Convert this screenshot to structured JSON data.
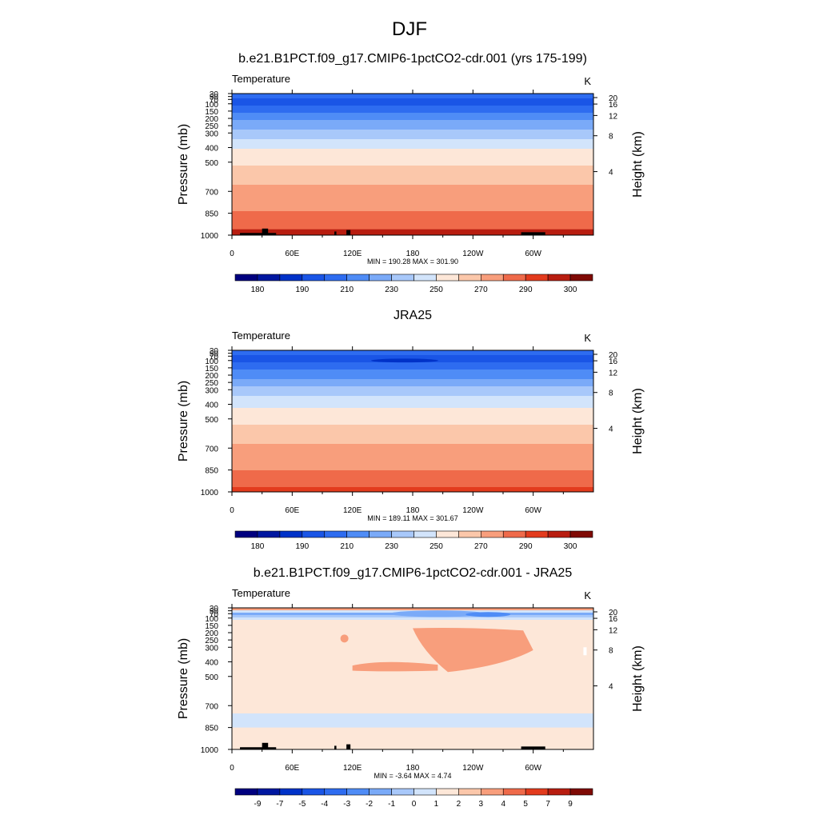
{
  "figure": {
    "title": "DJF"
  },
  "chart_data": [
    {
      "type": "heatmap",
      "title": "b.e21.B1PCT.f09_g17.CMIP6-1pctCO2-cdr.001 (yrs 175-199)",
      "left_label": "Temperature",
      "units": "K",
      "ylabel": "Pressure (mb)",
      "y2label": "Height (km)",
      "x_ticks": [
        "0",
        "60E",
        "120E",
        "180",
        "120W",
        "60W"
      ],
      "y_ticks": [
        "30",
        "50",
        "70",
        "100",
        "150",
        "200",
        "250",
        "300",
        "400",
        "500",
        "700",
        "850",
        "1000"
      ],
      "y2_ticks": [
        "4",
        "8",
        "12",
        "16",
        "20"
      ],
      "minmax": "MIN = 190.28  MAX = 301.90",
      "min": 190.28,
      "max": 301.9,
      "colorbar_labels": [
        "180",
        "190",
        "210",
        "230",
        "250",
        "270",
        "290",
        "300"
      ],
      "levels": [
        175,
        180,
        185,
        190,
        200,
        210,
        220,
        230,
        240,
        250,
        260,
        270,
        280,
        290,
        295,
        300
      ],
      "profile": [
        {
          "p": 30,
          "t": 212
        },
        {
          "p": 40,
          "t": 209
        },
        {
          "p": 50,
          "t": 205
        },
        {
          "p": 70,
          "t": 199
        },
        {
          "p": 100,
          "t": 198
        },
        {
          "p": 130,
          "t": 203
        },
        {
          "p": 150,
          "t": 208
        },
        {
          "p": 200,
          "t": 217
        },
        {
          "p": 250,
          "t": 227
        },
        {
          "p": 300,
          "t": 235
        },
        {
          "p": 400,
          "t": 249
        },
        {
          "p": 500,
          "t": 258
        },
        {
          "p": 600,
          "t": 266
        },
        {
          "p": 700,
          "t": 273
        },
        {
          "p": 850,
          "t": 281
        },
        {
          "p": 925,
          "t": 287
        },
        {
          "p": 1000,
          "t": 293
        }
      ],
      "topography": true
    },
    {
      "type": "heatmap",
      "title": "JRA25",
      "left_label": "Temperature",
      "units": "K",
      "ylabel": "Pressure (mb)",
      "y2label": "Height (km)",
      "x_ticks": [
        "0",
        "60E",
        "120E",
        "180",
        "120W",
        "60W"
      ],
      "y_ticks": [
        "30",
        "50",
        "70",
        "100",
        "150",
        "200",
        "250",
        "300",
        "400",
        "500",
        "700",
        "850",
        "1000"
      ],
      "y2_ticks": [
        "4",
        "8",
        "12",
        "16",
        "20"
      ],
      "minmax": "MIN = 189.11  MAX = 301.67",
      "min": 189.11,
      "max": 301.67,
      "colorbar_labels": [
        "180",
        "190",
        "210",
        "230",
        "250",
        "270",
        "290",
        "300"
      ],
      "levels": [
        175,
        180,
        185,
        190,
        200,
        210,
        220,
        230,
        240,
        250,
        260,
        270,
        280,
        290,
        295,
        300
      ],
      "profile": [
        {
          "p": 30,
          "t": 210
        },
        {
          "p": 40,
          "t": 207
        },
        {
          "p": 50,
          "t": 203
        },
        {
          "p": 70,
          "t": 198
        },
        {
          "p": 100,
          "t": 197
        },
        {
          "p": 130,
          "t": 202
        },
        {
          "p": 150,
          "t": 207
        },
        {
          "p": 200,
          "t": 216
        },
        {
          "p": 250,
          "t": 226
        },
        {
          "p": 300,
          "t": 234
        },
        {
          "p": 400,
          "t": 248
        },
        {
          "p": 500,
          "t": 257
        },
        {
          "p": 600,
          "t": 265
        },
        {
          "p": 700,
          "t": 272
        },
        {
          "p": 850,
          "t": 280
        },
        {
          "p": 925,
          "t": 286
        },
        {
          "p": 1000,
          "t": 292
        }
      ],
      "topography": false
    },
    {
      "type": "heatmap",
      "title": "b.e21.B1PCT.f09_g17.CMIP6-1pctCO2-cdr.001 - JRA25",
      "left_label": "Temperature",
      "units": "K",
      "ylabel": "Pressure (mb)",
      "y2label": "Height (km)",
      "x_ticks": [
        "0",
        "60E",
        "120E",
        "180",
        "120W",
        "60W"
      ],
      "y_ticks": [
        "30",
        "50",
        "70",
        "100",
        "150",
        "200",
        "250",
        "300",
        "400",
        "500",
        "700",
        "850",
        "1000"
      ],
      "y2_ticks": [
        "4",
        "8",
        "12",
        "16",
        "20"
      ],
      "minmax": "MIN =  -3.64  MAX =   4.74",
      "min": -3.64,
      "max": 4.74,
      "colorbar_labels": [
        "-9",
        "-7",
        "-5",
        "-4",
        "-3",
        "-2",
        "-1",
        "0",
        "1",
        "2",
        "3",
        "4",
        "5",
        "7",
        "9"
      ],
      "levels": [
        -11,
        -9,
        -7,
        -5,
        -4,
        -3,
        -2,
        -1,
        0,
        1,
        2,
        3,
        4,
        5,
        7,
        9
      ],
      "profile": [
        {
          "p": 30,
          "t": 4.2
        },
        {
          "p": 40,
          "t": 3.6
        },
        {
          "p": 50,
          "t": 1.5
        },
        {
          "p": 60,
          "t": -0.6
        },
        {
          "p": 70,
          "t": -1.6
        },
        {
          "p": 85,
          "t": -0.3
        },
        {
          "p": 100,
          "t": 0.4
        },
        {
          "p": 130,
          "t": 1.4
        },
        {
          "p": 150,
          "t": 1.5
        },
        {
          "p": 300,
          "t": 1.5
        },
        {
          "p": 500,
          "t": 1.6
        },
        {
          "p": 700,
          "t": 1.2
        },
        {
          "p": 850,
          "t": 0.6
        },
        {
          "p": 1000,
          "t": 1.5
        }
      ],
      "topography": true
    }
  ],
  "colors": {
    "temperature_fills": [
      "#00007f",
      "#0017a0",
      "#0032c8",
      "#1a55e6",
      "#2e6cf0",
      "#4f8cf6",
      "#7aaaf8",
      "#a8c8fa",
      "#d2e4fb",
      "#fde7d8",
      "#fbc7aa",
      "#f89e7c",
      "#ef6a4a",
      "#e33b1d",
      "#b81d10",
      "#7f0a05"
    ],
    "difference_fills": [
      "#00007f",
      "#0017a0",
      "#0032c8",
      "#1a55e6",
      "#2e6cf0",
      "#4f8cf6",
      "#7aaaf8",
      "#a8c8fa",
      "#d2e4fb",
      "#fde7d8",
      "#fbc7aa",
      "#f89e7c",
      "#ef6a4a",
      "#e33b1d",
      "#b81d10",
      "#7f0a05"
    ],
    "topography": "#000000"
  }
}
